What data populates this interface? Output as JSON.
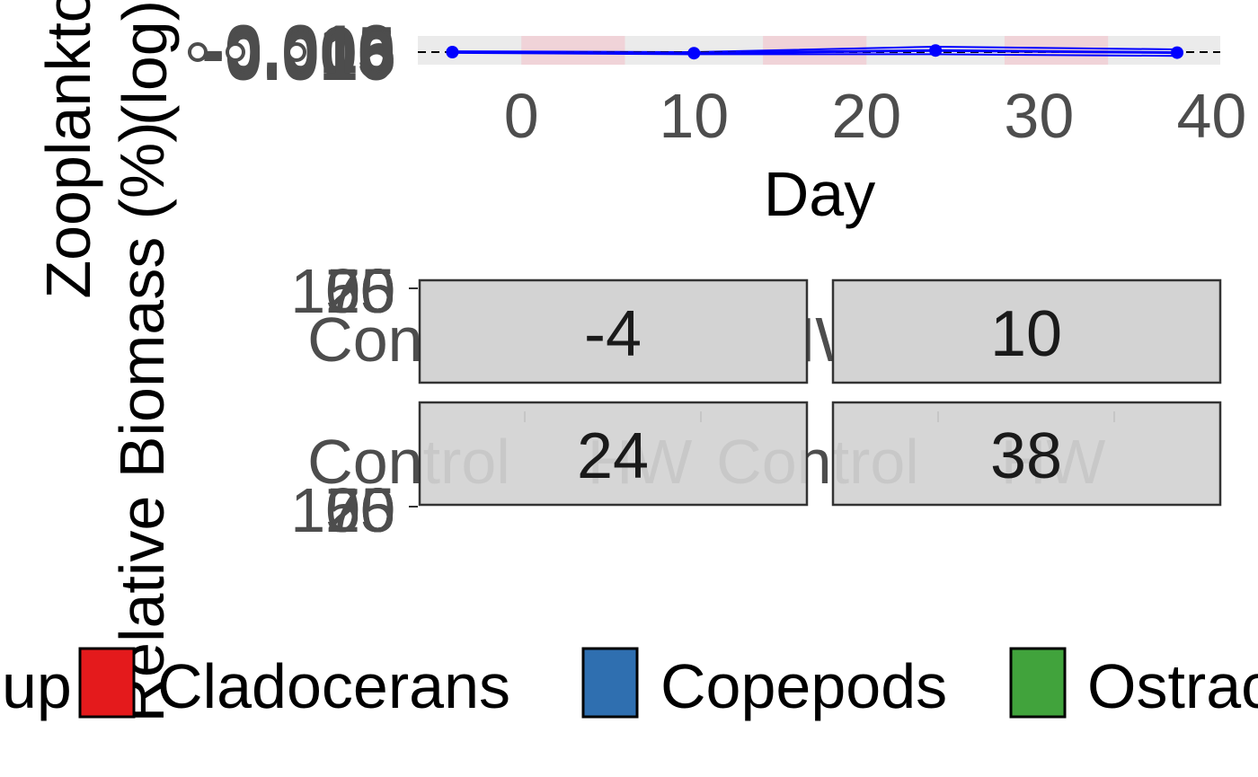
{
  "chart_data": [
    {
      "type": "line",
      "xlabel": "Day",
      "ylabel_lines": [
        "Zooplankton",
        "(log)"
      ],
      "x_ticks": [
        "0",
        "10",
        "20",
        "30",
        "40"
      ],
      "x_tick_values": [
        0,
        10,
        20,
        30,
        40
      ],
      "xlim": [
        -6,
        40.5
      ],
      "y_tick_labels": [
        "-0.010",
        "-0.005",
        "0.000",
        "0.005",
        "0.010"
      ],
      "reference_line": 0,
      "series": [
        {
          "x": [
            -4,
            10,
            24,
            38
          ],
          "y": [
            0.0,
            -0.002,
            0.003,
            -0.001
          ],
          "upper": [
            0.0015,
            0.0,
            0.01,
            0.005
          ],
          "lower": [
            -0.0015,
            -0.004,
            -0.004,
            -0.007
          ],
          "color": "#0000ff"
        }
      ],
      "shaded_periods": [
        [
          0,
          6
        ],
        [
          14,
          20
        ],
        [
          28,
          34
        ]
      ],
      "shade_color": "#f4c0c8"
    },
    {
      "type": "bar",
      "ylabel": "Relative Biomass (%)",
      "panels": [
        "-4",
        "10",
        "24",
        "38"
      ],
      "categories": [
        "Control",
        "HW"
      ],
      "y_tick_labels_top": [
        "100",
        "75",
        "50",
        "25",
        "0"
      ],
      "y_tick_labels_bottom": [
        "100",
        "75",
        "50",
        "25",
        "0"
      ],
      "legend": {
        "title": "Group",
        "visible_title": "up",
        "items": [
          {
            "label": "Cladocerans",
            "color": "#e41a1c"
          },
          {
            "label": "Copepods",
            "color": "#2f6fb0"
          },
          {
            "label": "Ostracods",
            "color": "#41a33c"
          }
        ]
      }
    }
  ]
}
